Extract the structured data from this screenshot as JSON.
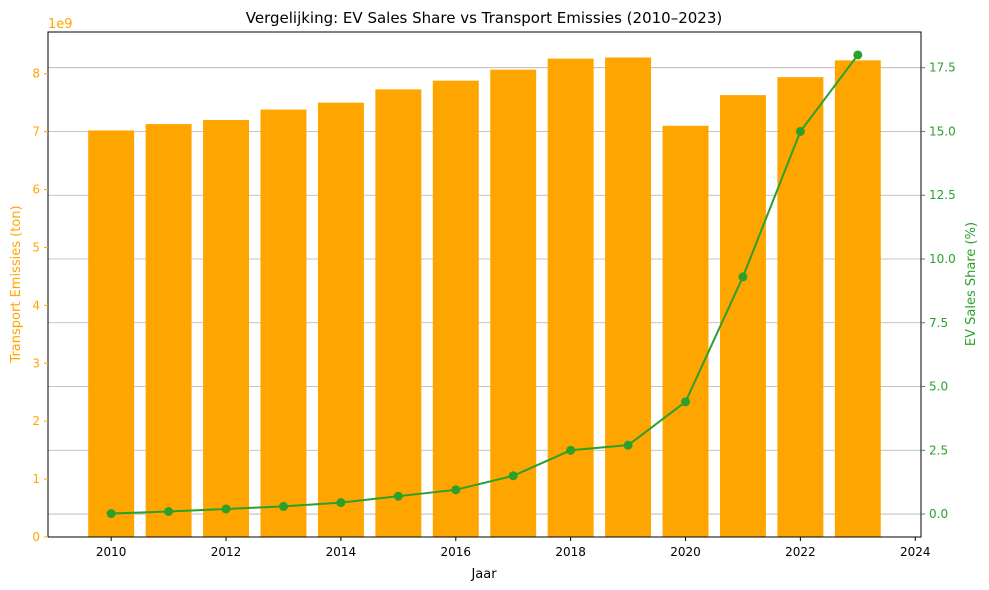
{
  "chart_data": {
    "type": "bar",
    "title": "Vergelijking: EV Sales Share vs Transport Emissies (2010–2023)",
    "xlabel": "Jaar",
    "ylabel": "Transport Emissies (ton)",
    "ylabel_right": "EV Sales Share (%)",
    "y_offset_label": "1e9",
    "xlim": [
      2008.9,
      2024.1
    ],
    "ylim": [
      0,
      8.72
    ],
    "ylim_right": [
      -0.9,
      18.9
    ],
    "x_ticks": [
      "2010",
      "2012",
      "2014",
      "2016",
      "2018",
      "2020",
      "2022",
      "2024"
    ],
    "y_ticks": [
      "0",
      "1",
      "2",
      "3",
      "4",
      "5",
      "6",
      "7",
      "8"
    ],
    "y_ticks_right": [
      "0.0",
      "2.5",
      "5.0",
      "7.5",
      "10.0",
      "12.5",
      "15.0",
      "17.5"
    ],
    "grid": "right-axis horizontal",
    "colors": {
      "bars": "#ffa500",
      "line": "#2ca02c",
      "left_axis": "#ffa500",
      "right_axis": "#2ca02c",
      "grid": "#b0b0b0"
    },
    "x": [
      2010,
      2011,
      2012,
      2013,
      2014,
      2015,
      2016,
      2017,
      2018,
      2019,
      2020,
      2021,
      2022,
      2023
    ],
    "series": [
      {
        "type": "bar",
        "axis": "left",
        "values": [
          7.02,
          7.13,
          7.2,
          7.38,
          7.5,
          7.73,
          7.88,
          8.07,
          8.26,
          8.28,
          7.1,
          7.63,
          7.94,
          8.23
        ]
      },
      {
        "type": "line",
        "axis": "right",
        "values": [
          0.02,
          0.1,
          0.2,
          0.3,
          0.45,
          0.7,
          0.95,
          1.5,
          2.5,
          2.7,
          4.4,
          9.3,
          15.0,
          18.0
        ]
      }
    ]
  }
}
